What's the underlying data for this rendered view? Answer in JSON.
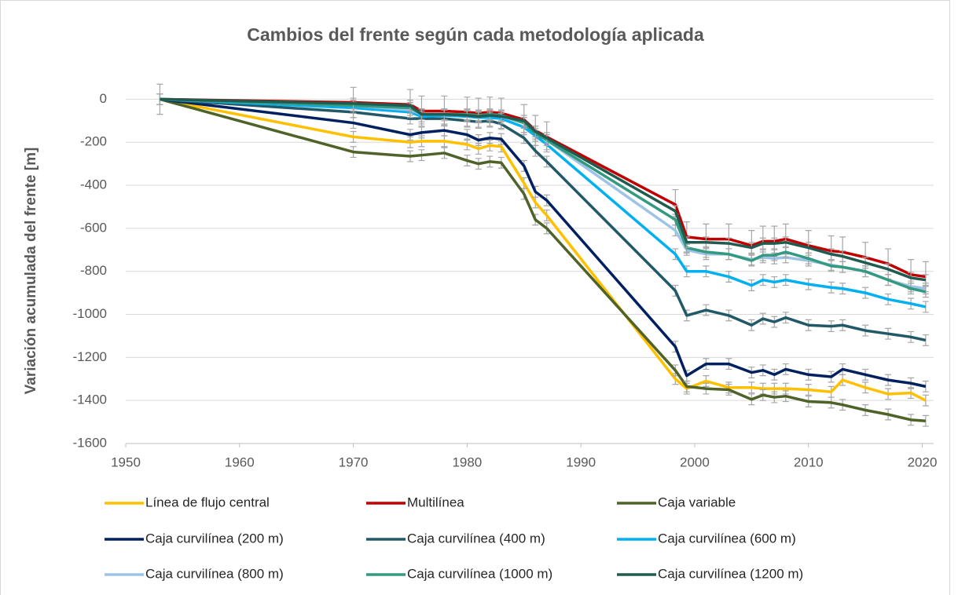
{
  "chart_data": {
    "type": "line",
    "title": "Cambios del frente según cada metodología aplicada",
    "y_label": "Variación acumulada del frente [m]",
    "x": [
      1953,
      1970,
      1975,
      1976,
      1978,
      1980,
      1981,
      1982,
      1983,
      1985,
      1986,
      1987,
      1998.3,
      1999.3,
      2001,
      2003,
      2005,
      2006,
      2007,
      2008,
      2010,
      2012,
      2013,
      2015,
      2017,
      2019,
      2020.3
    ],
    "xlim": [
      1950,
      2021
    ],
    "xticks": [
      1950,
      1960,
      1970,
      1980,
      1990,
      2000,
      2010,
      2020
    ],
    "ylim": [
      -1600,
      100
    ],
    "yticks": [
      0,
      -200,
      -400,
      -600,
      -800,
      -1000,
      -1200,
      -1400,
      -1600
    ],
    "grid": true,
    "legend": "bottom",
    "series": [
      {
        "name": "Línea de flujo central",
        "color": "#FFC000",
        "error": 25,
        "values": [
          0,
          -175,
          -200,
          -195,
          -195,
          -210,
          -230,
          -215,
          -220,
          -390,
          -480,
          -540,
          -1300,
          -1345,
          -1310,
          -1340,
          -1340,
          -1345,
          -1345,
          -1345,
          -1350,
          -1360,
          -1305,
          -1340,
          -1370,
          -1365,
          -1400
        ]
      },
      {
        "name": "Multilínea",
        "color": "#C00000",
        "error": 70,
        "values": [
          0,
          -15,
          -25,
          -55,
          -55,
          -60,
          -65,
          -60,
          -65,
          -95,
          -145,
          -175,
          -490,
          -640,
          -650,
          -650,
          -680,
          -660,
          -660,
          -650,
          -680,
          -705,
          -710,
          -735,
          -765,
          -815,
          -825
        ]
      },
      {
        "name": "Caja variable",
        "color": "#4F6228",
        "error": 25,
        "values": [
          0,
          -245,
          -265,
          -260,
          -250,
          -285,
          -300,
          -290,
          -295,
          -440,
          -560,
          -600,
          -1260,
          -1335,
          -1345,
          -1350,
          -1395,
          -1375,
          -1385,
          -1380,
          -1405,
          -1410,
          -1420,
          -1445,
          -1465,
          -1490,
          -1495
        ]
      },
      {
        "name": "Caja curvilínea (200 m)",
        "color": "#002060",
        "error": 25,
        "values": [
          0,
          -110,
          -165,
          -155,
          -145,
          -165,
          -190,
          -180,
          -185,
          -310,
          -430,
          -470,
          -1150,
          -1285,
          -1230,
          -1230,
          -1270,
          -1260,
          -1280,
          -1255,
          -1280,
          -1290,
          -1255,
          -1280,
          -1305,
          -1320,
          -1335
        ]
      },
      {
        "name": "Caja curvilínea (400 m)",
        "color": "#215968",
        "error": 25,
        "values": [
          0,
          -60,
          -90,
          -90,
          -90,
          -100,
          -105,
          -100,
          -115,
          -180,
          -240,
          -290,
          -890,
          -1005,
          -980,
          -1005,
          -1050,
          -1020,
          -1035,
          -1015,
          -1050,
          -1055,
          -1050,
          -1075,
          -1090,
          -1105,
          -1120
        ]
      },
      {
        "name": "Caja curvilínea (600 m)",
        "color": "#00B0F0",
        "error": 25,
        "values": [
          0,
          -40,
          -60,
          -80,
          -75,
          -80,
          -85,
          -85,
          -90,
          -130,
          -170,
          -210,
          -720,
          -800,
          -800,
          -825,
          -865,
          -840,
          -850,
          -840,
          -860,
          -875,
          -880,
          -900,
          -930,
          -950,
          -965
        ]
      },
      {
        "name": "Caja curvilínea (800 m)",
        "color": "#9DC3E6",
        "error": 25,
        "values": [
          0,
          -30,
          -50,
          -70,
          -70,
          -75,
          -75,
          -75,
          -80,
          -110,
          -150,
          -190,
          -610,
          -700,
          -720,
          -720,
          -745,
          -735,
          -740,
          -735,
          -750,
          -770,
          -780,
          -800,
          -840,
          -870,
          -880
        ]
      },
      {
        "name": "Caja curvilínea (1000 m)",
        "color": "#339980",
        "error": 25,
        "values": [
          0,
          -30,
          -40,
          -70,
          -70,
          -70,
          -75,
          -70,
          -75,
          -110,
          -160,
          -190,
          -560,
          -690,
          -710,
          -720,
          -750,
          -725,
          -725,
          -710,
          -740,
          -775,
          -780,
          -800,
          -840,
          -880,
          -895
        ]
      },
      {
        "name": "Caja curvilínea (1200 m)",
        "color": "#1F5B4F",
        "error": 25,
        "values": [
          0,
          -20,
          -30,
          -70,
          -70,
          -75,
          -80,
          -75,
          -80,
          -100,
          -150,
          -180,
          -520,
          -665,
          -665,
          -670,
          -690,
          -670,
          -670,
          -665,
          -690,
          -720,
          -730,
          -760,
          -790,
          -830,
          -840
        ]
      }
    ]
  }
}
